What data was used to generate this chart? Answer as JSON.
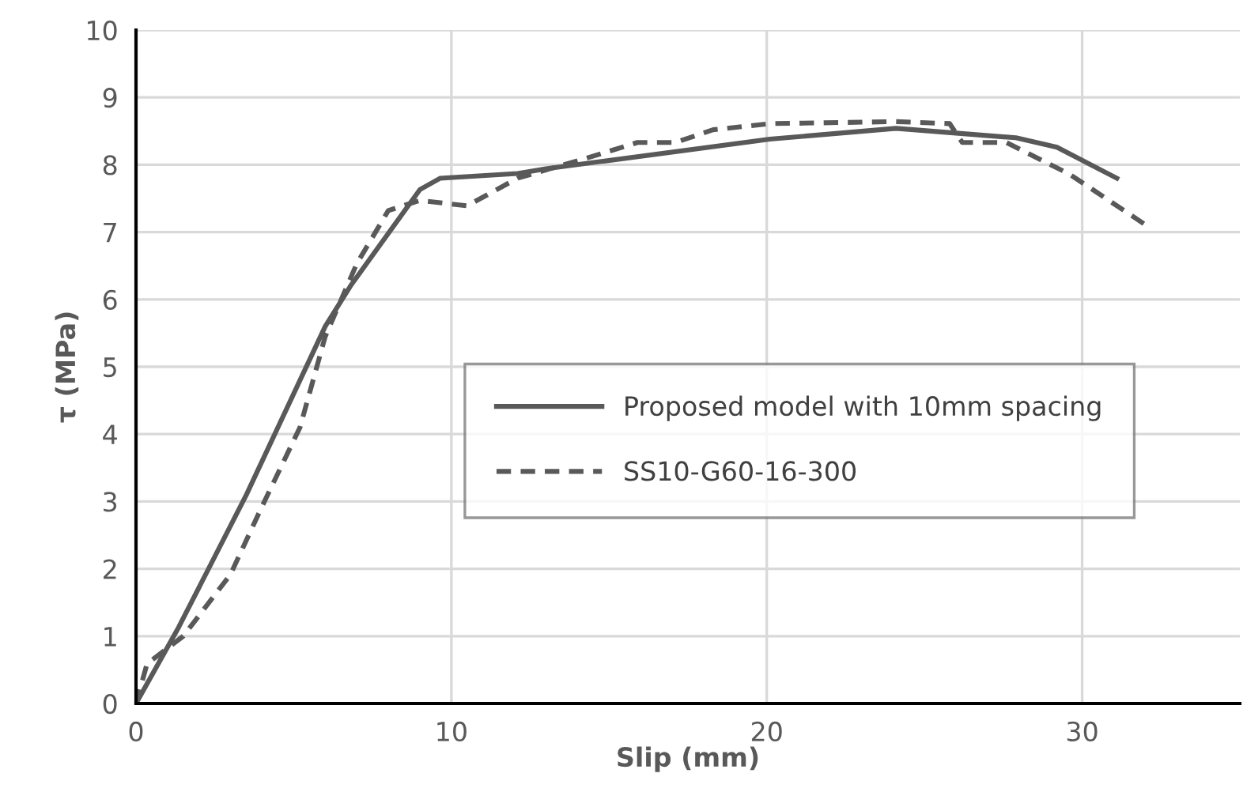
{
  "chart_data": {
    "type": "line",
    "xlabel": "Slip (mm)",
    "ylabel": "τ (MPa)",
    "xlim": [
      0,
      35
    ],
    "ylim": [
      0,
      10
    ],
    "xticks": [
      0,
      10,
      20,
      30
    ],
    "yticks": [
      0,
      1,
      2,
      3,
      4,
      5,
      6,
      7,
      8,
      9,
      10
    ],
    "grid": true,
    "legend": "right",
    "series": [
      {
        "name": "Proposed model with 10mm spacing",
        "color": "#595959",
        "line_style": "solid",
        "x": [
          0,
          1.35,
          3.5,
          6.0,
          6.8,
          9.0,
          9.65,
          12.1,
          13.0,
          20.1,
          24.1,
          27.9,
          29.2,
          31.1
        ],
        "values": [
          0,
          1.13,
          3.1,
          5.6,
          6.2,
          7.63,
          7.8,
          7.87,
          7.94,
          8.38,
          8.54,
          8.4,
          8.26,
          7.8
        ]
      },
      {
        "name": "SS10-G60-16-300",
        "color": "#595959",
        "line_style": "dashed",
        "x": [
          0,
          0.35,
          1.5,
          3.0,
          4.0,
          5.2,
          6.0,
          7.0,
          8.0,
          9.0,
          10.5,
          12.1,
          14.3,
          15.9,
          17.1,
          18.3,
          20.1,
          24.1,
          25.8,
          26.2,
          27.6,
          29.6,
          32.0
        ],
        "values": [
          0,
          0.59,
          1.0,
          1.92,
          2.93,
          4.1,
          5.45,
          6.53,
          7.32,
          7.47,
          7.39,
          7.8,
          8.1,
          8.33,
          8.33,
          8.52,
          8.61,
          8.64,
          8.61,
          8.33,
          8.33,
          7.86,
          7.11
        ]
      }
    ]
  }
}
